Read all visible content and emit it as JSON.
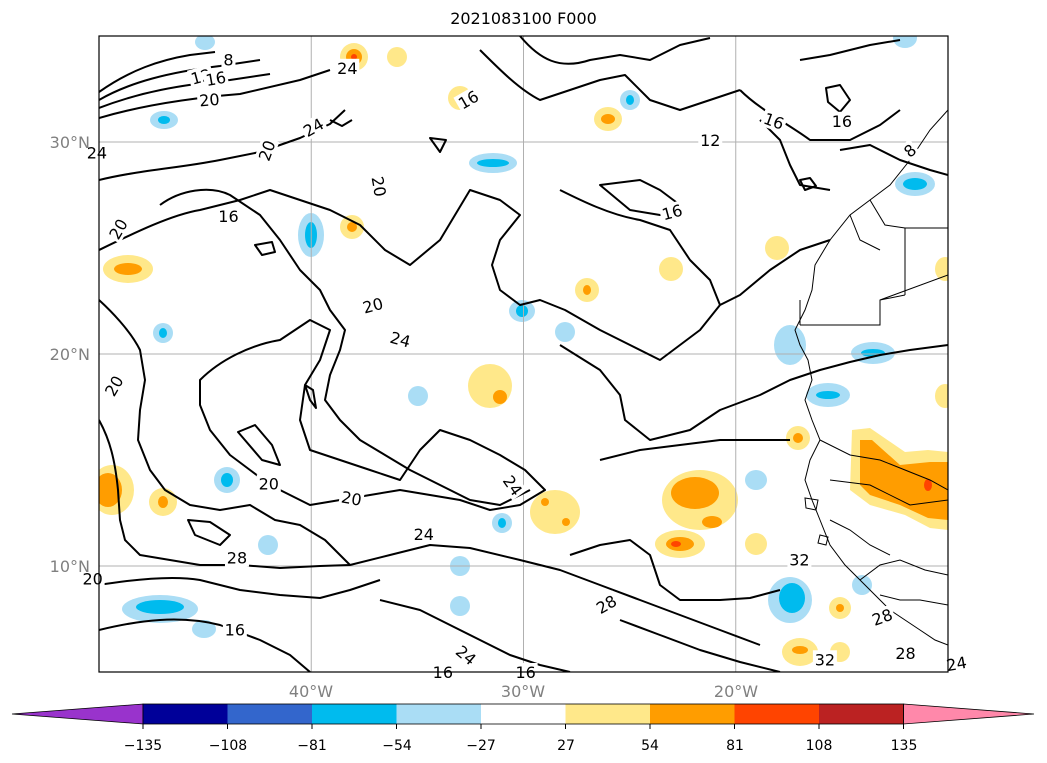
{
  "title": "2021083100 F000",
  "map": {
    "lat_ticks": [
      "30°N",
      "20°N",
      "10°N"
    ],
    "lon_ticks": [
      "40°W",
      "30°W",
      "20°W"
    ],
    "gridlines": true
  },
  "contour_labels": [
    {
      "text": "8",
      "lon": -43.9,
      "lat": 33.9,
      "rot": 0
    },
    {
      "text": "12",
      "lon": -45.2,
      "lat": 33.1,
      "rot": -15
    },
    {
      "text": "16",
      "lon": -44.5,
      "lat": 33.0,
      "rot": -10
    },
    {
      "text": "20",
      "lon": -44.8,
      "lat": 32.0,
      "rot": -5
    },
    {
      "text": "24",
      "lon": -38.3,
      "lat": 33.5,
      "rot": 0
    },
    {
      "text": "16",
      "lon": -32.6,
      "lat": 32.0,
      "rot": -30
    },
    {
      "text": "24",
      "lon": -50.1,
      "lat": 29.5,
      "rot": 0
    },
    {
      "text": "20",
      "lon": -42.1,
      "lat": 29.6,
      "rot": -70
    },
    {
      "text": "24",
      "lon": -39.9,
      "lat": 30.7,
      "rot": -30
    },
    {
      "text": "20",
      "lon": -36.8,
      "lat": 27.9,
      "rot": 80
    },
    {
      "text": "16",
      "lon": -43.9,
      "lat": 26.5,
      "rot": 0
    },
    {
      "text": "12",
      "lon": -21.2,
      "lat": 30.1,
      "rot": 0
    },
    {
      "text": "16",
      "lon": -18.2,
      "lat": 31.0,
      "rot": 20
    },
    {
      "text": "16",
      "lon": -15.0,
      "lat": 31.0,
      "rot": 0
    },
    {
      "text": "8",
      "lon": -11.8,
      "lat": 29.6,
      "rot": -40
    },
    {
      "text": "16",
      "lon": -23.0,
      "lat": 26.7,
      "rot": -15
    },
    {
      "text": "20",
      "lon": -49.1,
      "lat": 25.9,
      "rot": -60
    },
    {
      "text": "20",
      "lon": -37.1,
      "lat": 22.3,
      "rot": -15
    },
    {
      "text": "24",
      "lon": -35.8,
      "lat": 20.7,
      "rot": 15
    },
    {
      "text": "20",
      "lon": -49.3,
      "lat": 18.5,
      "rot": -60
    },
    {
      "text": "20",
      "lon": -42.0,
      "lat": 13.9,
      "rot": 0
    },
    {
      "text": "20",
      "lon": -38.1,
      "lat": 13.2,
      "rot": 10
    },
    {
      "text": "24",
      "lon": -30.5,
      "lat": 13.8,
      "rot": 55
    },
    {
      "text": "24",
      "lon": -34.7,
      "lat": 11.5,
      "rot": 0
    },
    {
      "text": "28",
      "lon": -43.5,
      "lat": 10.4,
      "rot": 0
    },
    {
      "text": "20",
      "lon": -50.3,
      "lat": 9.4,
      "rot": 0
    },
    {
      "text": "16",
      "lon": -43.6,
      "lat": 7.0,
      "rot": 0
    },
    {
      "text": "28",
      "lon": -26.1,
      "lat": 8.2,
      "rot": -30
    },
    {
      "text": "24",
      "lon": -32.7,
      "lat": 5.8,
      "rot": 40
    },
    {
      "text": "16",
      "lon": -33.8,
      "lat": 5.0,
      "rot": 0
    },
    {
      "text": "16",
      "lon": -29.9,
      "lat": 5.0,
      "rot": 0
    },
    {
      "text": "32",
      "lon": -17.0,
      "lat": 10.3,
      "rot": 0
    },
    {
      "text": "28",
      "lon": -13.1,
      "lat": 7.6,
      "rot": -20
    },
    {
      "text": "28",
      "lon": -12.0,
      "lat": 5.9,
      "rot": 0
    },
    {
      "text": "32",
      "lon": -15.8,
      "lat": 5.6,
      "rot": 0
    },
    {
      "text": "24",
      "lon": -9.6,
      "lat": 5.4,
      "rot": -10
    }
  ],
  "colorbar": {
    "ticks": [
      "−135",
      "−108",
      "−81",
      "−54",
      "−27",
      "27",
      "54",
      "81",
      "108",
      "135"
    ],
    "colors": [
      "#9933cc",
      "#000099",
      "#3366cc",
      "#00bbee",
      "#aaddf5",
      "#ffffff",
      "#ffe88a",
      "#ff9d00",
      "#ff4400",
      "#bb2222",
      "#ff88aa"
    ],
    "extend": "both"
  }
}
